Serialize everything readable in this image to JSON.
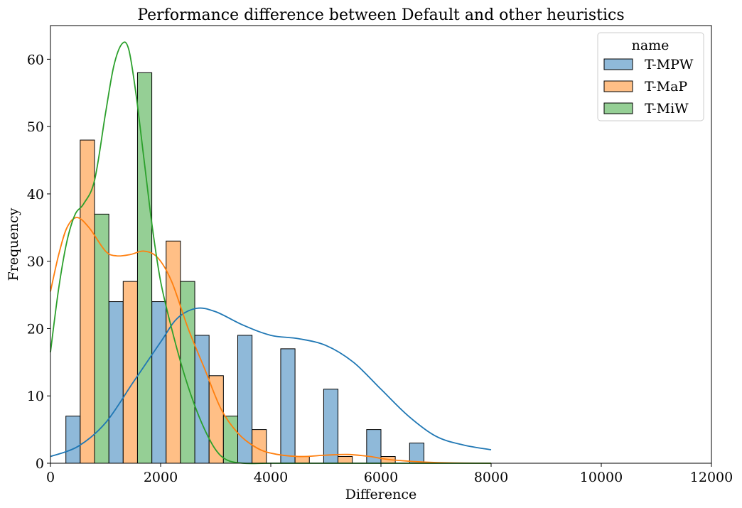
{
  "chart_data": {
    "type": "bar",
    "title": "Performance difference between Default and other heuristics",
    "xlabel": "Difference",
    "ylabel": "Frequency",
    "xlim": [
      0,
      12000
    ],
    "ylim": [
      0,
      65
    ],
    "xticks": [
      0,
      2000,
      4000,
      6000,
      8000,
      10000,
      12000
    ],
    "yticks": [
      0,
      10,
      20,
      30,
      40,
      50,
      60
    ],
    "grid": false,
    "legend": {
      "title": "name",
      "placement": "top-right"
    },
    "bin_edges": [
      280,
      1060,
      1840,
      2620,
      3400,
      4180,
      4960,
      5740,
      6520,
      7300
    ],
    "series": [
      {
        "name": "T-MPW",
        "color": "#1f77b4",
        "fill": "#8fb9d9",
        "values": [
          7,
          24,
          24,
          19,
          19,
          17,
          11,
          5,
          3
        ],
        "kde": [
          [
            0,
            1
          ],
          [
            500,
            2.5
          ],
          [
            1000,
            6
          ],
          [
            1500,
            12
          ],
          [
            2000,
            18
          ],
          [
            2300,
            21.5
          ],
          [
            2650,
            23
          ],
          [
            3000,
            22.5
          ],
          [
            3500,
            20.5
          ],
          [
            4000,
            19
          ],
          [
            4500,
            18.5
          ],
          [
            5000,
            17.5
          ],
          [
            5500,
            15
          ],
          [
            6000,
            11
          ],
          [
            6500,
            7
          ],
          [
            7000,
            4
          ],
          [
            7500,
            2.7
          ],
          [
            8000,
            2
          ]
        ]
      },
      {
        "name": "T-MaP",
        "color": "#ff7f0e",
        "fill": "#ffbf86",
        "values": [
          48,
          27,
          33,
          13,
          5,
          1,
          1,
          1,
          0
        ],
        "kde": [
          [
            0,
            25.5
          ],
          [
            150,
            31
          ],
          [
            300,
            35
          ],
          [
            480,
            36.5
          ],
          [
            700,
            35
          ],
          [
            1000,
            31.5
          ],
          [
            1200,
            30.8
          ],
          [
            1450,
            31
          ],
          [
            1700,
            31.5
          ],
          [
            1950,
            30.5
          ],
          [
            2200,
            27
          ],
          [
            2500,
            20
          ],
          [
            2800,
            14
          ],
          [
            3100,
            8
          ],
          [
            3400,
            4.5
          ],
          [
            3700,
            2.5
          ],
          [
            4000,
            1.5
          ],
          [
            4500,
            1
          ],
          [
            5000,
            1.2
          ],
          [
            5400,
            1.3
          ],
          [
            5800,
            1
          ],
          [
            6200,
            0.5
          ],
          [
            7000,
            0.1
          ],
          [
            8000,
            0
          ]
        ]
      },
      {
        "name": "T-MiW",
        "color": "#2ca02c",
        "fill": "#95cf95",
        "values": [
          37,
          58,
          27,
          7,
          0,
          0,
          0,
          0,
          0
        ],
        "kde": [
          [
            0,
            16.5
          ],
          [
            150,
            26
          ],
          [
            300,
            33
          ],
          [
            450,
            37
          ],
          [
            600,
            38.5
          ],
          [
            800,
            42
          ],
          [
            1000,
            52
          ],
          [
            1150,
            59
          ],
          [
            1300,
            62.3
          ],
          [
            1420,
            61.5
          ],
          [
            1550,
            55
          ],
          [
            1700,
            45
          ],
          [
            1850,
            35
          ],
          [
            2000,
            27
          ],
          [
            2200,
            20
          ],
          [
            2400,
            14
          ],
          [
            2600,
            9
          ],
          [
            2800,
            5
          ],
          [
            3000,
            2
          ],
          [
            3200,
            0.5
          ],
          [
            3500,
            0
          ],
          [
            4000,
            0
          ],
          [
            5000,
            0
          ],
          [
            6000,
            0
          ],
          [
            7000,
            0
          ],
          [
            8000,
            0
          ]
        ]
      }
    ]
  }
}
